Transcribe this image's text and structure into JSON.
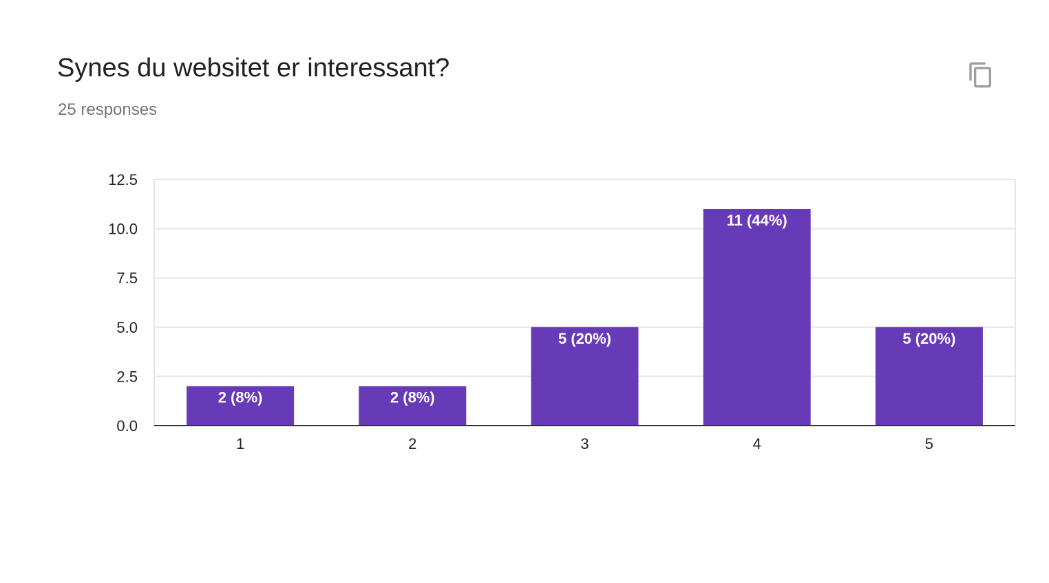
{
  "header": {
    "title": "Synes du websitet er interessant?",
    "responses": "25 responses",
    "copy_icon": "copy-icon"
  },
  "colors": {
    "bar": "#673ab7",
    "grid": "#e6e6e6",
    "axis": "#333333",
    "title": "#212121",
    "subtitle": "#757575"
  },
  "chart_data": {
    "type": "bar",
    "title": "",
    "xlabel": "",
    "ylabel": "",
    "categories": [
      "1",
      "2",
      "3",
      "4",
      "5"
    ],
    "values": [
      2,
      2,
      5,
      11,
      5
    ],
    "data_labels": [
      "2 (8%)",
      "2 (8%)",
      "5 (20%)",
      "11 (44%)",
      "5 (20%)"
    ],
    "y_ticks": [
      "0.0",
      "2.5",
      "5.0",
      "7.5",
      "10.0",
      "12.5"
    ],
    "ylim": [
      0,
      12.5
    ],
    "grid": true,
    "legend": "none"
  }
}
